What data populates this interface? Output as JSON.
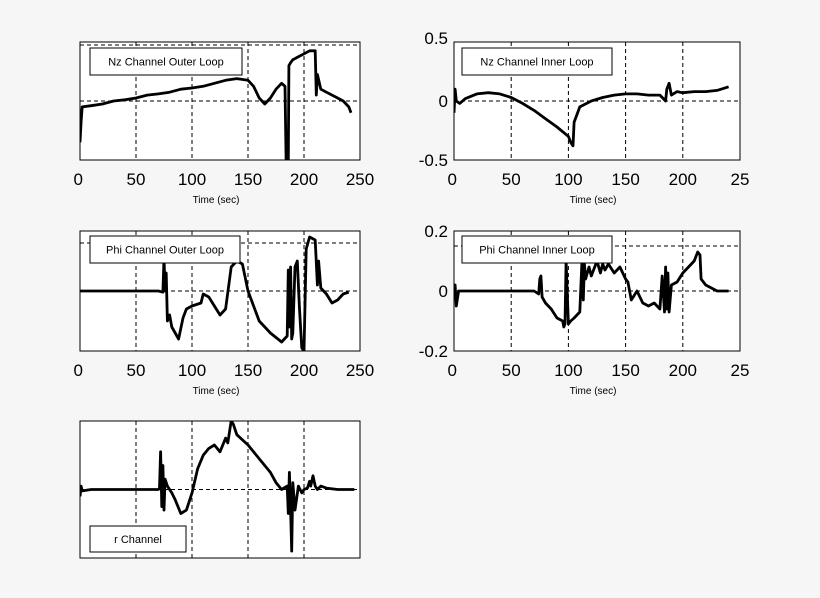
{
  "chart_data": [
    {
      "type": "line",
      "title": "",
      "legend": "Nz Channel Outer Loop",
      "xlabel": "Time (sec)",
      "xticks": [
        "0",
        "50",
        "100",
        "150",
        "200",
        "250"
      ],
      "yticks": [],
      "xlim": [
        0,
        250
      ],
      "ylim": [
        -1,
        1
      ],
      "x": [
        0,
        1,
        2,
        10,
        20,
        30,
        40,
        50,
        60,
        70,
        80,
        90,
        100,
        110,
        120,
        130,
        140,
        150,
        155,
        160,
        165,
        170,
        175,
        180,
        183,
        184,
        186,
        186.5,
        188,
        190,
        195,
        200,
        205,
        210,
        211,
        212,
        215,
        220,
        230,
        235,
        240,
        242
      ],
      "y": [
        -0.7,
        -0.35,
        -0.1,
        -0.08,
        -0.05,
        0.0,
        0.02,
        0.05,
        0.1,
        0.12,
        0.15,
        0.2,
        0.22,
        0.25,
        0.3,
        0.35,
        0.38,
        0.35,
        0.25,
        0.05,
        -0.05,
        0.05,
        0.2,
        0.3,
        0.25,
        -1.0,
        -1.0,
        0.6,
        0.65,
        0.7,
        0.75,
        0.8,
        0.85,
        0.85,
        0.1,
        0.45,
        0.2,
        0.15,
        0.05,
        0.0,
        -0.1,
        -0.2
      ]
    },
    {
      "type": "line",
      "title": "",
      "legend": "Nz Channel Inner Loop",
      "xlabel": "Time (sec)",
      "xticks": [
        "0",
        "50",
        "100",
        "150",
        "200",
        "25"
      ],
      "yticks": [
        "0.5",
        "0",
        "-0.5"
      ],
      "xlim": [
        0,
        250
      ],
      "ylim": [
        -0.5,
        0.5
      ],
      "x": [
        0,
        1,
        2,
        5,
        10,
        20,
        30,
        40,
        50,
        60,
        70,
        80,
        90,
        100,
        102,
        104,
        105,
        110,
        120,
        130,
        140,
        150,
        160,
        170,
        180,
        185,
        186,
        188,
        190,
        195,
        200,
        210,
        220,
        230,
        240
      ],
      "y": [
        -0.1,
        0.1,
        0.0,
        -0.02,
        0.02,
        0.06,
        0.07,
        0.06,
        0.03,
        -0.02,
        -0.08,
        -0.15,
        -0.22,
        -0.3,
        -0.35,
        -0.38,
        -0.18,
        -0.05,
        0.0,
        0.03,
        0.05,
        0.06,
        0.06,
        0.05,
        0.05,
        0.0,
        0.1,
        0.15,
        0.05,
        0.08,
        0.07,
        0.08,
        0.08,
        0.09,
        0.12
      ]
    },
    {
      "type": "line",
      "title": "",
      "legend": "Phi Channel Outer Loop",
      "xlabel": "Time (sec)",
      "xticks": [
        "0",
        "50",
        "100",
        "150",
        "200",
        "250"
      ],
      "yticks": [],
      "xlim": [
        0,
        250
      ],
      "ylim": [
        -1,
        1
      ],
      "x": [
        0,
        20,
        40,
        60,
        70,
        74,
        75,
        76,
        77,
        78,
        80,
        82,
        88,
        92,
        95,
        100,
        108,
        110,
        115,
        120,
        125,
        130,
        135,
        140,
        145,
        150,
        160,
        170,
        180,
        185,
        186,
        187,
        188,
        189,
        190,
        192,
        194,
        196,
        198,
        200,
        202,
        205,
        210,
        212,
        213,
        215,
        220,
        225,
        230,
        235,
        240
      ],
      "y": [
        0.0,
        0.0,
        0.0,
        0.0,
        0.0,
        -0.02,
        0.55,
        0.0,
        0.3,
        -0.5,
        -0.4,
        -0.6,
        -0.8,
        -0.45,
        -0.3,
        -0.25,
        -0.2,
        -0.05,
        -0.1,
        -0.25,
        -0.4,
        -0.3,
        0.4,
        0.5,
        0.45,
        0.0,
        -0.5,
        -0.7,
        -0.85,
        -0.75,
        0.35,
        -0.6,
        0.4,
        -0.8,
        -0.7,
        0.4,
        0.5,
        -0.3,
        -0.95,
        -1.0,
        0.7,
        0.9,
        0.85,
        0.1,
        0.5,
        0.05,
        -0.05,
        -0.2,
        -0.15,
        -0.05,
        -0.02
      ]
    },
    {
      "type": "line",
      "title": "",
      "legend": "Phi Channel Inner Loop",
      "xlabel": "Time (sec)",
      "xticks": [
        "0",
        "50",
        "100",
        "150",
        "200",
        "25"
      ],
      "yticks": [
        "0.2",
        "0",
        "-0.2"
      ],
      "xlim": [
        0,
        250
      ],
      "ylim": [
        -0.2,
        0.2
      ],
      "x": [
        0,
        1,
        2,
        4,
        20,
        40,
        60,
        70,
        74,
        75,
        76,
        77,
        80,
        85,
        90,
        95,
        96,
        97,
        98,
        100,
        102,
        105,
        110,
        112,
        113,
        114,
        115,
        118,
        120,
        125,
        128,
        130,
        132,
        135,
        140,
        145,
        150,
        152,
        155,
        160,
        165,
        170,
        175,
        180,
        182,
        184,
        185,
        186,
        187,
        188,
        190,
        195,
        200,
        205,
        210,
        213,
        215,
        216,
        218,
        220,
        225,
        230,
        235,
        240
      ],
      "y": [
        0.0,
        0.02,
        -0.05,
        0.0,
        0.0,
        0.0,
        0.0,
        0.0,
        -0.01,
        0.04,
        0.05,
        -0.02,
        -0.04,
        -0.06,
        -0.09,
        -0.1,
        -0.12,
        -0.11,
        0.1,
        -0.11,
        -0.1,
        -0.09,
        -0.07,
        0.11,
        -0.03,
        0.09,
        0.04,
        0.08,
        0.05,
        0.1,
        0.06,
        0.09,
        0.07,
        0.09,
        0.06,
        0.08,
        0.04,
        0.03,
        -0.03,
        0.0,
        -0.04,
        -0.05,
        -0.04,
        -0.06,
        0.05,
        -0.07,
        0.08,
        -0.06,
        0.06,
        -0.07,
        0.02,
        0.03,
        0.06,
        0.08,
        0.1,
        0.13,
        0.12,
        0.04,
        0.03,
        0.02,
        0.01,
        0.0,
        0.0,
        0.0
      ]
    },
    {
      "type": "line",
      "title": "",
      "legend": "r Channel",
      "xlabel": "",
      "xticks": [],
      "yticks": [],
      "xlim": [
        0,
        250
      ],
      "ylim": [
        -1,
        1
      ],
      "x": [
        0,
        1,
        2,
        10,
        20,
        30,
        40,
        50,
        60,
        65,
        70,
        71,
        72,
        73,
        74,
        75,
        76,
        78,
        80,
        82,
        85,
        90,
        95,
        100,
        105,
        110,
        115,
        120,
        125,
        130,
        132,
        134,
        135,
        137,
        140,
        150,
        160,
        170,
        175,
        180,
        185,
        186,
        187,
        188,
        189,
        190,
        192,
        195,
        198,
        200,
        203,
        205,
        206,
        208,
        210,
        212,
        215,
        220,
        230,
        240,
        245
      ],
      "y": [
        -0.1,
        0.05,
        -0.02,
        0.0,
        0.0,
        0.0,
        0.0,
        0.0,
        0.0,
        0.0,
        0.0,
        0.02,
        0.55,
        -0.25,
        0.35,
        -0.3,
        0.15,
        0.05,
        0.0,
        -0.05,
        -0.15,
        -0.35,
        -0.3,
        -0.05,
        0.3,
        0.5,
        0.6,
        0.65,
        0.55,
        0.75,
        0.68,
        0.9,
        1.0,
        0.95,
        0.8,
        0.65,
        0.45,
        0.25,
        0.1,
        0.0,
        0.05,
        -0.35,
        0.25,
        -0.3,
        -0.9,
        0.1,
        -0.3,
        0.05,
        -0.05,
        0.0,
        0.02,
        0.12,
        0.05,
        0.2,
        0.05,
        0.0,
        0.05,
        0.02,
        0.0,
        0.0,
        0.0
      ]
    }
  ]
}
